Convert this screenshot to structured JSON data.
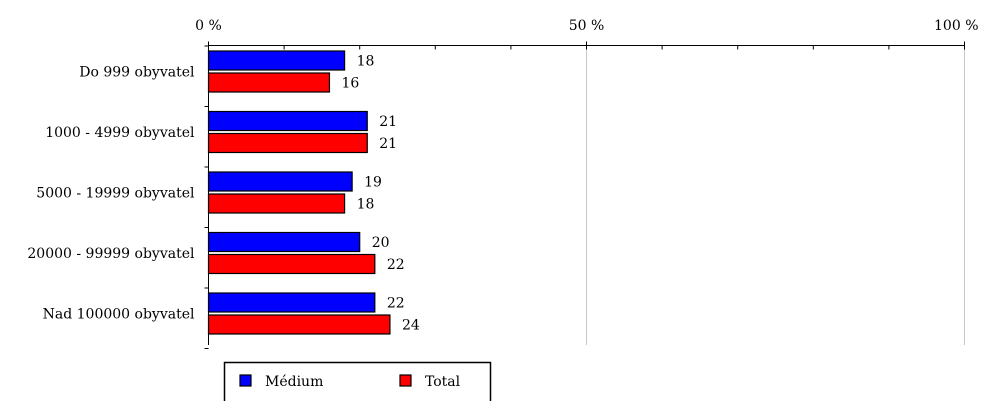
{
  "chart_data": {
    "type": "bar",
    "orientation": "horizontal",
    "categories": [
      "Do 999 obyvatel",
      "1000 - 4999 obyvatel",
      "5000 - 19999 obyvatel",
      "20000 - 99999 obyvatel",
      "Nad 100000 obyvatel"
    ],
    "series": [
      {
        "name": "Médium",
        "color": "#0000ff",
        "values": [
          18,
          21,
          19,
          20,
          22
        ]
      },
      {
        "name": "Total",
        "color": "#ff0000",
        "values": [
          16,
          21,
          18,
          22,
          24
        ]
      }
    ],
    "xlim": [
      0,
      100
    ],
    "x_ticks": [
      0,
      50,
      100
    ],
    "x_tick_labels": [
      "0 %",
      "50 %",
      "100 %"
    ],
    "x_minor_tick_step": 10,
    "axis_position": "top",
    "grid": true,
    "legend_position": "bottom-left",
    "title": "",
    "xlabel": "",
    "ylabel": ""
  }
}
